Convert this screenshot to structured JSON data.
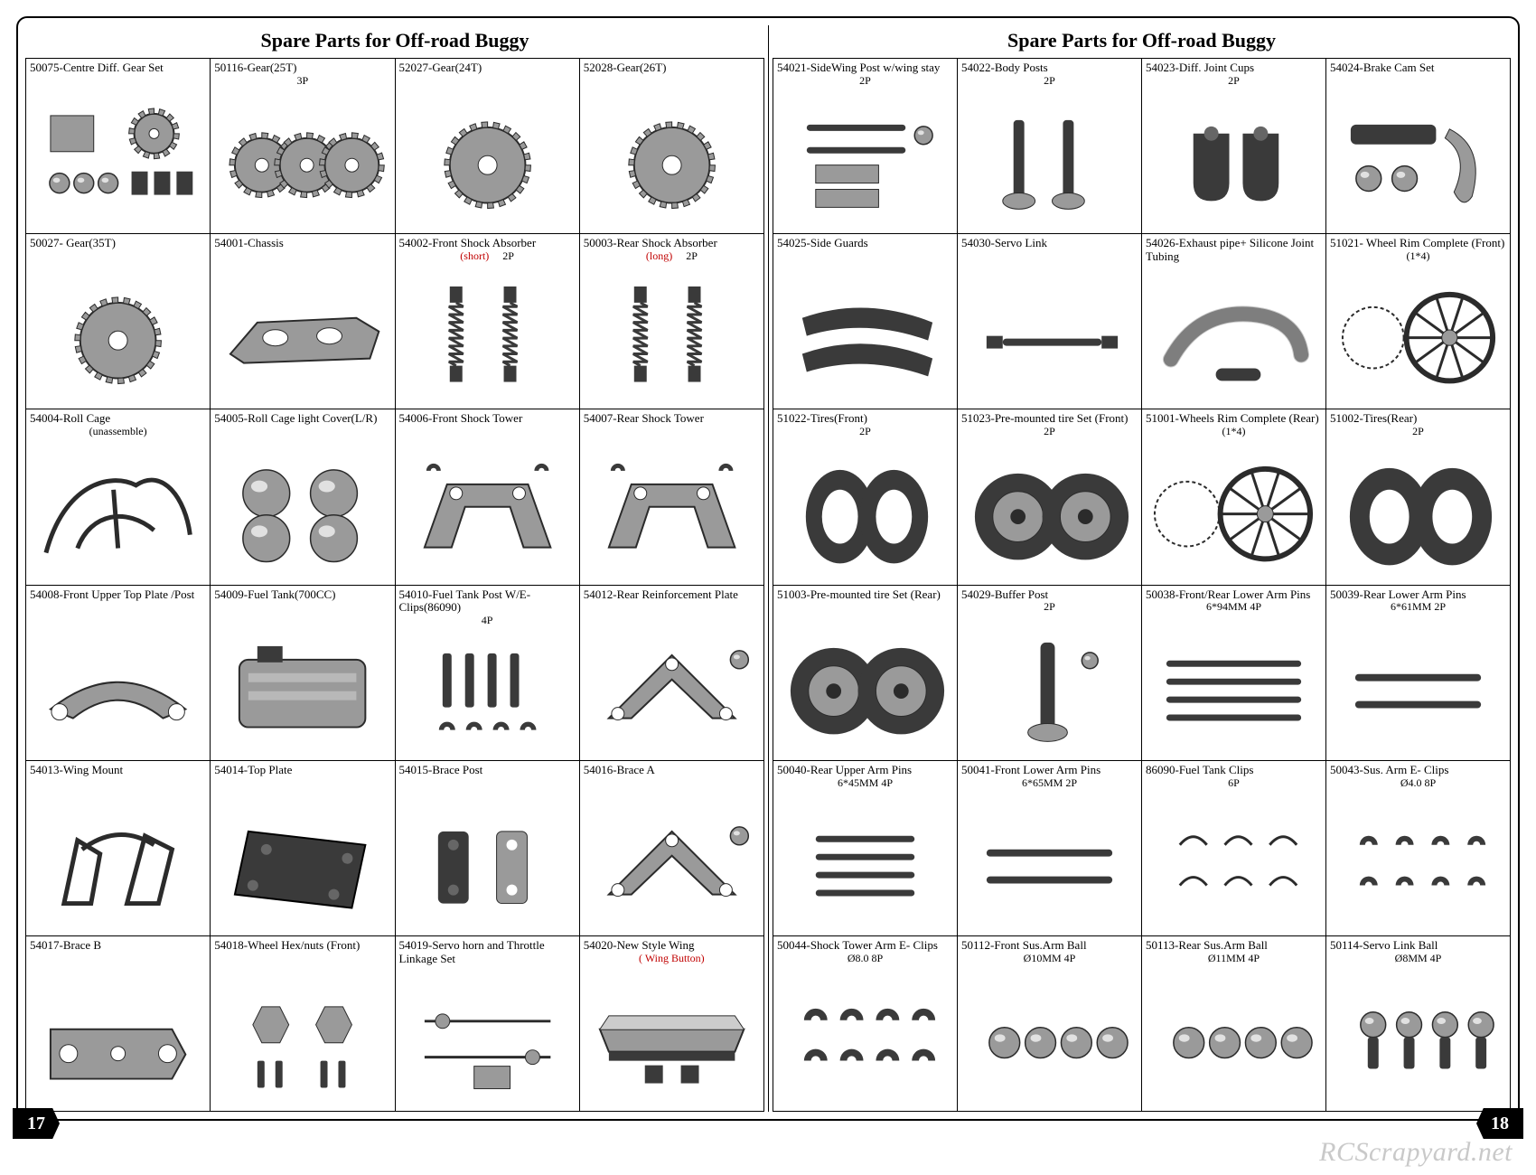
{
  "title": "Spare Parts for Off-road Buggy",
  "page_left_num": "17",
  "page_right_num": "18",
  "watermark": "RCScrapyard.net",
  "colors": {
    "part_fill": "#9a9a9a",
    "part_stroke": "#2b2b2b",
    "dark": "#3a3a3a",
    "black": "#000000",
    "red": "#c00000"
  },
  "left_cells": [
    {
      "label": "50075-Centre Diff. Gear Set",
      "sub": "",
      "icon": "diffset"
    },
    {
      "label": "50116-Gear(25T)",
      "sub": "3P",
      "icon": "gear3"
    },
    {
      "label": "52027-Gear(24T)",
      "sub": "",
      "icon": "gear1"
    },
    {
      "label": "52028-Gear(26T)",
      "sub": "",
      "icon": "gear1"
    },
    {
      "label": "50027- Gear(35T)",
      "sub": "",
      "icon": "gear1"
    },
    {
      "label": "54001-Chassis",
      "sub": "",
      "icon": "chassis"
    },
    {
      "label": "54002-Front Shock Absorber",
      "sub_html": "<span class='red'>(short)</span> &nbsp;&nbsp;&nbsp;&nbsp;2P",
      "icon": "shocks"
    },
    {
      "label": "50003-Rear Shock Absorber",
      "sub_html": "<span class='red'>(long)</span> &nbsp;&nbsp;&nbsp;&nbsp;2P",
      "icon": "shocks"
    },
    {
      "label": "54004-Roll Cage",
      "sub": "(unassemble)",
      "icon": "rollcage"
    },
    {
      "label": "54005-Roll Cage light Cover(L/R)",
      "sub": "",
      "icon": "lightcover"
    },
    {
      "label": "54006-Front  Shock Tower",
      "sub": "",
      "icon": "shocktower"
    },
    {
      "label": "54007-Rear Shock Tower",
      "sub": "",
      "icon": "shocktower"
    },
    {
      "label": "54008-Front Upper Top Plate /Post",
      "sub": "",
      "icon": "topplate"
    },
    {
      "label": "54009-Fuel Tank(700CC)",
      "sub": "",
      "icon": "fueltank"
    },
    {
      "label": "54010-Fuel Tank Post W/E-Clips(86090)",
      "sub": "4P",
      "icon": "posts"
    },
    {
      "label": "54012-Rear Reinforcement Plate",
      "sub": "",
      "icon": "bracea"
    },
    {
      "label": "54013-Wing Mount",
      "sub": "",
      "icon": "wingmount"
    },
    {
      "label": "54014-Top Plate",
      "sub": "",
      "icon": "plate"
    },
    {
      "label": "54015-Brace Post",
      "sub": "",
      "icon": "bracepost"
    },
    {
      "label": "54016-Brace A",
      "sub": "",
      "icon": "bracea"
    },
    {
      "label": "54017-Brace B",
      "sub": "",
      "icon": "braceb"
    },
    {
      "label": "54018-Wheel Hex/nuts (Front)",
      "sub": "",
      "icon": "hexnuts"
    },
    {
      "label": "54019-Servo horn and Throttle Linkage Set",
      "sub": "",
      "icon": "linkage"
    },
    {
      "label": "54020-New Style  Wing",
      "sub_html": "<span class='red'>( Wing Button)</span>",
      "icon": "wing"
    }
  ],
  "right_cells": [
    {
      "label": "54021-SideWing Post w/wing stay",
      "sub": "2P",
      "icon": "sidewing"
    },
    {
      "label": "54022-Body Posts",
      "sub": "2P",
      "icon": "bodyposts"
    },
    {
      "label": "54023-Diff. Joint Cups",
      "sub": "2P",
      "icon": "cups"
    },
    {
      "label": "54024-Brake Cam  Set",
      "sub": "",
      "icon": "brakecam"
    },
    {
      "label": "54025-Side Guards",
      "sub": "",
      "icon": "sideguards"
    },
    {
      "label": "54030-Servo Link",
      "sub": "",
      "icon": "servolink"
    },
    {
      "label": "54026-Exhaust pipe+ Silicone Joint Tubing",
      "sub": "",
      "icon": "exhaust"
    },
    {
      "label": "51021- Wheel Rim Complete (Front)",
      "sub": "(1*4)",
      "icon": "rimfront"
    },
    {
      "label": "51022-Tires(Front)",
      "sub": "2P",
      "icon": "tiresfront"
    },
    {
      "label": "51023-Pre-mounted tire Set (Front)",
      "sub": "2P",
      "icon": "tiremount"
    },
    {
      "label": "51001-Wheels Rim Complete (Rear)",
      "sub": "(1*4)",
      "icon": "rimrear"
    },
    {
      "label": "51002-Tires(Rear)",
      "sub": "2P",
      "icon": "tiresrear"
    },
    {
      "label": "51003-Pre-mounted tire Set (Rear)",
      "sub": "",
      "icon": "tiremount"
    },
    {
      "label": "54029-Buffer Post",
      "sub": "2P",
      "icon": "bufferpost"
    },
    {
      "label": "50038-Front/Rear Lower Arm Pins",
      "sub": "6*94MM 4P",
      "icon": "pins4"
    },
    {
      "label": "50039-Rear  Lower Arm Pins",
      "sub": "6*61MM   2P",
      "icon": "pins2"
    },
    {
      "label": "50040-Rear  Upper Arm Pins",
      "sub": "6*45MM    4P",
      "icon": "pins4s"
    },
    {
      "label": "50041-Front Lower Arm Pins",
      "sub": "6*65MM 2P",
      "icon": "pins2"
    },
    {
      "label": "86090-Fuel Tank Clips",
      "sub": "6P",
      "icon": "clips6"
    },
    {
      "label": "50043-Sus. Arm E- Clips",
      "sub": "Ø4.0  8P",
      "icon": "eclips8"
    },
    {
      "label": "50044-Shock Tower   Arm E- Clips",
      "sub": "Ø8.0  8P",
      "icon": "eclips8b"
    },
    {
      "label": "50112-Front  Sus.Arm Ball",
      "sub": "Ø10MM   4P",
      "icon": "balls4"
    },
    {
      "label": "50113-Rear Sus.Arm Ball",
      "sub": "Ø11MM  4P",
      "icon": "balls4"
    },
    {
      "label": "50114-Servo  Link Ball",
      "sub": "Ø8MM 4P",
      "icon": "ballstud4"
    }
  ]
}
